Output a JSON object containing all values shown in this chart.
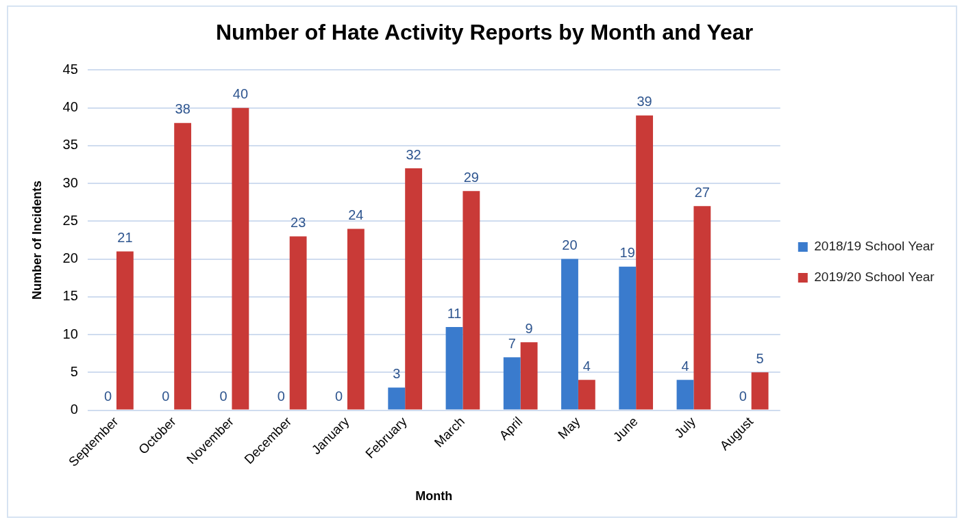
{
  "chart_data": {
    "type": "bar",
    "title": "Number of Hate Activity Reports by Month and Year",
    "xlabel": "Month",
    "ylabel": "Number of Incidents",
    "categories": [
      "September",
      "October",
      "November",
      "December",
      "January",
      "February",
      "March",
      "April",
      "May",
      "June",
      "July",
      "August"
    ],
    "series": [
      {
        "name": "2018/19 School Year",
        "color": "#3a7bcd",
        "values": [
          0,
          0,
          0,
          0,
          0,
          3,
          11,
          7,
          20,
          19,
          4,
          0
        ]
      },
      {
        "name": "2019/20 School Year",
        "color": "#c93a37",
        "values": [
          21,
          38,
          40,
          23,
          24,
          32,
          29,
          9,
          4,
          39,
          27,
          5
        ]
      }
    ],
    "ylim": [
      0,
      45
    ],
    "yticks": [
      0,
      5,
      10,
      15,
      20,
      25,
      30,
      35,
      40,
      45
    ],
    "grid": "y",
    "legend": "right",
    "data_labels": true
  }
}
